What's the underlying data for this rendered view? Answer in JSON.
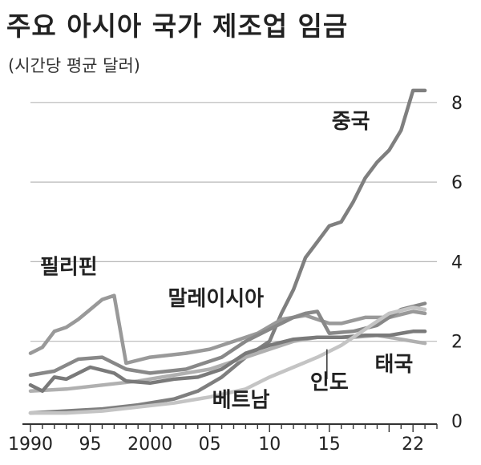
{
  "title": "주요 아시아 국가 제조업 임금",
  "subtitle": "(시간당 평균 달러)",
  "chart_data": {
    "type": "line",
    "ylim": [
      0,
      8.6
    ],
    "xlim": [
      1990,
      2024
    ],
    "grid": "horizontal",
    "xticks": [
      {
        "v": 1990,
        "label": "1990"
      },
      {
        "v": 1995,
        "label": "95"
      },
      {
        "v": 2000,
        "label": "2000"
      },
      {
        "v": 2005,
        "label": "05"
      },
      {
        "v": 2010,
        "label": "10"
      },
      {
        "v": 2015,
        "label": "15"
      },
      {
        "v": 2022,
        "label": "22"
      }
    ],
    "yticks": [
      {
        "v": 0,
        "label": "0"
      },
      {
        "v": 2,
        "label": "2"
      },
      {
        "v": 4,
        "label": "4"
      },
      {
        "v": 6,
        "label": "6"
      },
      {
        "v": 8,
        "label": "8"
      }
    ],
    "series": [
      {
        "name": "중국",
        "color": "#7f7f7f",
        "points": [
          [
            1990,
            0.2
          ],
          [
            1993,
            0.25
          ],
          [
            1996,
            0.3
          ],
          [
            1999,
            0.4
          ],
          [
            2002,
            0.55
          ],
          [
            2004,
            0.75
          ],
          [
            2006,
            1.1
          ],
          [
            2008,
            1.6
          ],
          [
            2010,
            2.0
          ],
          [
            2011,
            2.7
          ],
          [
            2012,
            3.3
          ],
          [
            2013,
            4.1
          ],
          [
            2014,
            4.5
          ],
          [
            2015,
            4.9
          ],
          [
            2016,
            5.0
          ],
          [
            2017,
            5.5
          ],
          [
            2018,
            6.1
          ],
          [
            2019,
            6.5
          ],
          [
            2020,
            6.8
          ],
          [
            2021,
            7.3
          ],
          [
            2022,
            8.3
          ],
          [
            2023,
            8.3
          ]
        ]
      },
      {
        "name": "필리핀",
        "color": "#999999",
        "points": [
          [
            1990,
            1.7
          ],
          [
            1991,
            1.85
          ],
          [
            1992,
            2.25
          ],
          [
            1993,
            2.35
          ],
          [
            1994,
            2.55
          ],
          [
            1995,
            2.8
          ],
          [
            1996,
            3.05
          ],
          [
            1997,
            3.15
          ],
          [
            1998,
            1.45
          ],
          [
            2000,
            1.6
          ],
          [
            2003,
            1.7
          ],
          [
            2005,
            1.8
          ],
          [
            2007,
            2.0
          ],
          [
            2009,
            2.2
          ],
          [
            2011,
            2.55
          ],
          [
            2013,
            2.65
          ],
          [
            2015,
            2.45
          ],
          [
            2016,
            2.45
          ],
          [
            2018,
            2.6
          ],
          [
            2020,
            2.6
          ],
          [
            2022,
            2.75
          ],
          [
            2023,
            2.7
          ]
        ]
      },
      {
        "name": "말레이시아",
        "color": "#888888",
        "points": [
          [
            1990,
            1.15
          ],
          [
            1992,
            1.25
          ],
          [
            1994,
            1.55
          ],
          [
            1996,
            1.6
          ],
          [
            1998,
            1.3
          ],
          [
            2000,
            1.2
          ],
          [
            2003,
            1.3
          ],
          [
            2006,
            1.6
          ],
          [
            2008,
            2.0
          ],
          [
            2010,
            2.3
          ],
          [
            2012,
            2.6
          ],
          [
            2013,
            2.7
          ],
          [
            2014,
            2.75
          ],
          [
            2015,
            2.2
          ],
          [
            2017,
            2.25
          ],
          [
            2019,
            2.4
          ],
          [
            2021,
            2.8
          ],
          [
            2023,
            2.95
          ]
        ]
      },
      {
        "name": "태국",
        "color": "#b0b0b0",
        "points": [
          [
            1990,
            0.75
          ],
          [
            1993,
            0.8
          ],
          [
            1996,
            0.9
          ],
          [
            1999,
            1.0
          ],
          [
            2002,
            1.15
          ],
          [
            2005,
            1.3
          ],
          [
            2008,
            1.6
          ],
          [
            2010,
            1.8
          ],
          [
            2012,
            2.0
          ],
          [
            2014,
            2.1
          ],
          [
            2015,
            2.1
          ],
          [
            2017,
            2.1
          ],
          [
            2019,
            2.15
          ],
          [
            2021,
            2.05
          ],
          [
            2023,
            1.95
          ]
        ]
      },
      {
        "name": "인도",
        "color": "#7a7a7a",
        "points": [
          [
            1990,
            0.9
          ],
          [
            1991,
            0.75
          ],
          [
            1992,
            1.1
          ],
          [
            1993,
            1.05
          ],
          [
            1995,
            1.35
          ],
          [
            1997,
            1.2
          ],
          [
            1998,
            1.0
          ],
          [
            2000,
            0.95
          ],
          [
            2002,
            1.05
          ],
          [
            2004,
            1.1
          ],
          [
            2006,
            1.3
          ],
          [
            2008,
            1.7
          ],
          [
            2010,
            1.9
          ],
          [
            2012,
            2.05
          ],
          [
            2014,
            2.1
          ],
          [
            2016,
            2.1
          ],
          [
            2018,
            2.15
          ],
          [
            2020,
            2.15
          ],
          [
            2022,
            2.25
          ],
          [
            2023,
            2.25
          ]
        ]
      },
      {
        "name": "베트남",
        "color": "#c4c4c4",
        "points": [
          [
            1990,
            0.2
          ],
          [
            1993,
            0.2
          ],
          [
            1996,
            0.25
          ],
          [
            1999,
            0.35
          ],
          [
            2002,
            0.45
          ],
          [
            2005,
            0.6
          ],
          [
            2008,
            0.8
          ],
          [
            2010,
            1.1
          ],
          [
            2012,
            1.35
          ],
          [
            2014,
            1.6
          ],
          [
            2016,
            1.9
          ],
          [
            2018,
            2.3
          ],
          [
            2020,
            2.7
          ],
          [
            2022,
            2.85
          ],
          [
            2023,
            2.8
          ]
        ]
      }
    ],
    "labels": [
      {
        "text": "중국",
        "x": 2015.2,
        "y": 7.35
      },
      {
        "text": "필리핀",
        "x": 1990.8,
        "y": 3.7
      },
      {
        "text": "말레이시아",
        "x": 2001.5,
        "y": 2.9
      },
      {
        "text": "태국",
        "x": 2018.8,
        "y": 1.25
      },
      {
        "text": "인도",
        "x": 2013.4,
        "y": 0.8
      },
      {
        "text": "베트남",
        "x": 2005.2,
        "y": 0.35
      }
    ]
  }
}
